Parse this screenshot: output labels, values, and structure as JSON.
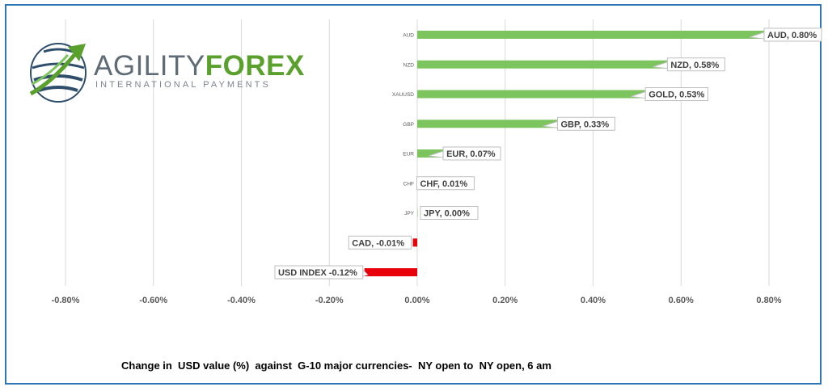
{
  "logo": {
    "brand_part1": "AGILITY",
    "brand_part2": "FOREX",
    "tagline": "INTERNATIONAL PAYMENTS"
  },
  "caption": "Change in  USD value (%)  against  G-10 major currencies-  NY open to  NY open, 6 am",
  "colors": {
    "positive": "#7cc55e",
    "negative": "#e8000b",
    "gridline": "#d9d9d9",
    "frame": "#2e75b6"
  },
  "chart_data": {
    "type": "bar",
    "orientation": "horizontal",
    "categories": [
      "AUD",
      "NZD",
      "XAUUSD",
      "GBP",
      "EUR",
      "CHF",
      "JPY",
      "CAD",
      "USD INDEX"
    ],
    "category_tick_labels": [
      "AUD",
      "NZD",
      "XAUUSD",
      "GBP",
      "EUR",
      "CHF",
      "JPY",
      "",
      ""
    ],
    "values": [
      0.8,
      0.58,
      0.53,
      0.33,
      0.07,
      0.01,
      0.0,
      -0.01,
      -0.12
    ],
    "data_labels": [
      "AUD, 0.80%",
      "NZD, 0.58%",
      "GOLD, 0.53%",
      "GBP, 0.33%",
      "EUR, 0.07%",
      "CHF, 0.01%",
      "JPY, 0.00%",
      "CAD, -0.01%",
      "USD INDEX -0.12%"
    ],
    "x_ticks": [
      -0.8,
      -0.6,
      -0.4,
      -0.2,
      0,
      0.2,
      0.4,
      0.6,
      0.8
    ],
    "x_tick_labels": [
      "-0.80%",
      "-0.60%",
      "-0.40%",
      "-0.20%",
      "0.00%",
      "0.20%",
      "0.40%",
      "0.60%",
      "0.80%"
    ],
    "xlim": [
      -0.8,
      0.8
    ],
    "grid": "vertical",
    "title": "",
    "xlabel": "",
    "ylabel": ""
  }
}
